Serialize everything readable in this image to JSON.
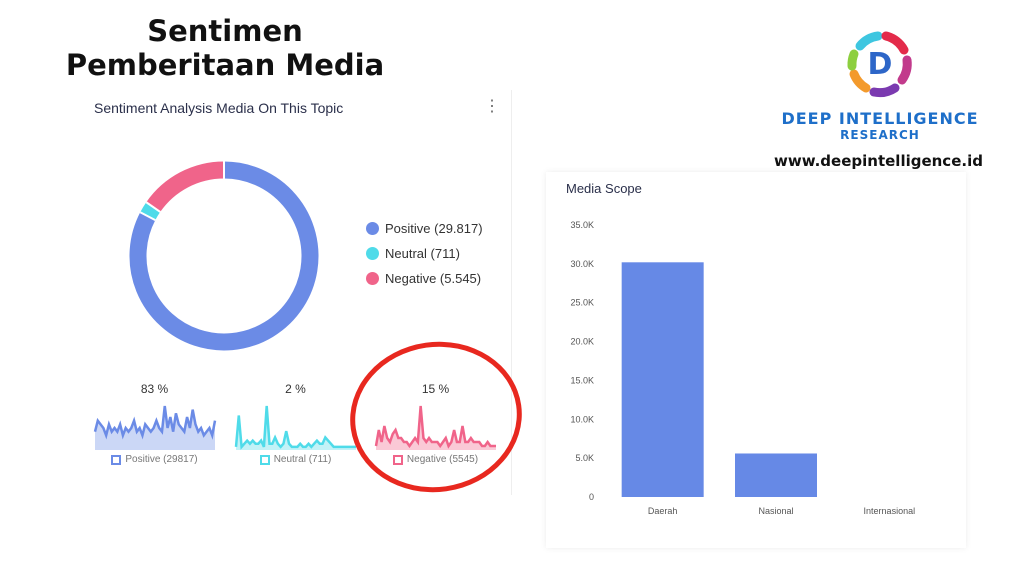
{
  "page_title": "Sentimen Pemberitaan Media",
  "sentiment_card": {
    "title": "Sentiment Analysis Media On This Topic",
    "menu_icon": "kebab-menu-icon",
    "legend": [
      {
        "label": "Positive (29.817)",
        "value": 29817,
        "color": "#6b8be6"
      },
      {
        "label": "Neutral (711)",
        "value": 711,
        "color": "#4fdbe9"
      },
      {
        "label": "Negative (5.545)",
        "value": 5545,
        "color": "#f0648a"
      }
    ],
    "sparklines": [
      {
        "percent": "83 %",
        "label": "Positive (29817)",
        "color": "#6b8be6",
        "values": [
          5,
          8,
          7,
          6,
          4,
          7,
          5,
          6,
          5,
          7,
          4,
          6,
          5,
          6,
          8,
          5,
          6,
          4,
          7,
          6,
          5,
          6,
          8,
          6,
          5,
          12,
          6,
          9,
          5,
          10,
          7,
          6,
          5,
          9,
          6,
          11,
          7,
          5,
          6,
          4,
          5,
          6,
          4,
          8
        ]
      },
      {
        "percent": "2 %",
        "label": "Neutral (711)",
        "color": "#4fdbe9",
        "values": [
          1,
          11,
          1,
          2,
          3,
          2,
          3,
          2,
          2,
          3,
          1,
          14,
          2,
          2,
          4,
          2,
          1,
          2,
          6,
          2,
          1,
          1,
          1,
          2,
          1,
          1,
          2,
          1,
          2,
          3,
          2,
          2,
          4,
          3,
          2,
          1,
          1,
          1,
          1,
          1,
          1,
          1,
          1,
          1
        ]
      },
      {
        "percent": "15 %",
        "label": "Negative (5545)",
        "color": "#f0648a",
        "values": [
          1,
          5,
          2,
          6,
          3,
          2,
          4,
          5,
          3,
          3,
          2,
          2,
          1,
          2,
          3,
          2,
          11,
          3,
          2,
          3,
          2,
          2,
          2,
          1,
          2,
          3,
          1,
          2,
          5,
          2,
          2,
          6,
          2,
          2,
          3,
          2,
          2,
          2,
          1,
          1,
          2,
          1,
          1,
          1
        ]
      }
    ]
  },
  "logo": {
    "name": "DEEP INTELLIGENCE",
    "sub": "RESEARCH",
    "url": "www.deepintelligence.id"
  },
  "chart_data": {
    "type": "bar",
    "title": "Media Scope",
    "categories": [
      "Daerah",
      "Nasional",
      "Internasional"
    ],
    "values": [
      30200,
      5600,
      0
    ],
    "ylim": [
      0,
      35000
    ],
    "yticks": [
      "0",
      "5.0K",
      "10.0K",
      "15.0K",
      "20.0K",
      "25.0K",
      "30.0K",
      "35.0K"
    ],
    "color": "#6689e6"
  }
}
